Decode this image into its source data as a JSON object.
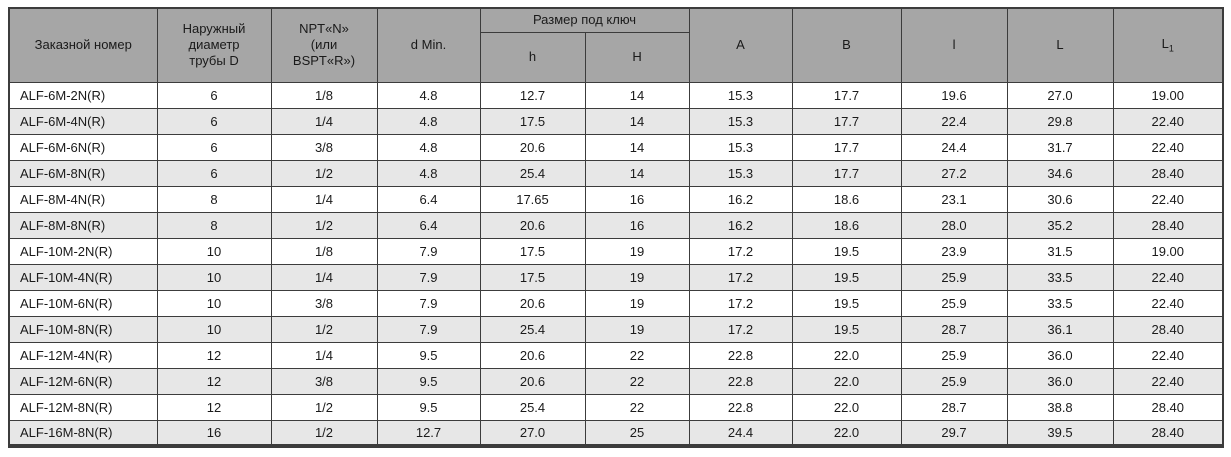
{
  "table": {
    "colors": {
      "header_bg": "#a6a6a6",
      "stripe_bg": "#e7e7e7",
      "row_bg": "#ffffff",
      "border": "#3c3c3c",
      "text": "#1a1a1a"
    },
    "header": {
      "order_number": "Заказной номер",
      "outer_diameter": "Наружный\nдиаметр\nтрубы D",
      "npt": "NPT«N»\n(или\nBSPT«R»)",
      "d_min": "d Min.",
      "wrench_size_group": "Размер под ключ",
      "h_lower": "h",
      "h_upper": "H",
      "a": "A",
      "b": "B",
      "l_lower": "l",
      "l_upper": "L",
      "l1_base": "L",
      "l1_sub": "1"
    },
    "rows": [
      {
        "order": "ALF-6M-2N(R)",
        "d": "6",
        "npt": "1/8",
        "d_min": "4.8",
        "h": "12.7",
        "H": "14",
        "A": "15.3",
        "B": "17.7",
        "l": "19.6",
        "L": "27.0",
        "L1": "19.00"
      },
      {
        "order": "ALF-6M-4N(R)",
        "d": "6",
        "npt": "1/4",
        "d_min": "4.8",
        "h": "17.5",
        "H": "14",
        "A": "15.3",
        "B": "17.7",
        "l": "22.4",
        "L": "29.8",
        "L1": "22.40"
      },
      {
        "order": "ALF-6M-6N(R)",
        "d": "6",
        "npt": "3/8",
        "d_min": "4.8",
        "h": "20.6",
        "H": "14",
        "A": "15.3",
        "B": "17.7",
        "l": "24.4",
        "L": "31.7",
        "L1": "22.40"
      },
      {
        "order": "ALF-6M-8N(R)",
        "d": "6",
        "npt": "1/2",
        "d_min": "4.8",
        "h": "25.4",
        "H": "14",
        "A": "15.3",
        "B": "17.7",
        "l": "27.2",
        "L": "34.6",
        "L1": "28.40"
      },
      {
        "order": "ALF-8M-4N(R)",
        "d": "8",
        "npt": "1/4",
        "d_min": "6.4",
        "h": "17.65",
        "H": "16",
        "A": "16.2",
        "B": "18.6",
        "l": "23.1",
        "L": "30.6",
        "L1": "22.40"
      },
      {
        "order": "ALF-8M-8N(R)",
        "d": "8",
        "npt": "1/2",
        "d_min": "6.4",
        "h": "20.6",
        "H": "16",
        "A": "16.2",
        "B": "18.6",
        "l": "28.0",
        "L": "35.2",
        "L1": "28.40"
      },
      {
        "order": "ALF-10M-2N(R)",
        "d": "10",
        "npt": "1/8",
        "d_min": "7.9",
        "h": "17.5",
        "H": "19",
        "A": "17.2",
        "B": "19.5",
        "l": "23.9",
        "L": "31.5",
        "L1": "19.00"
      },
      {
        "order": "ALF-10M-4N(R)",
        "d": "10",
        "npt": "1/4",
        "d_min": "7.9",
        "h": "17.5",
        "H": "19",
        "A": "17.2",
        "B": "19.5",
        "l": "25.9",
        "L": "33.5",
        "L1": "22.40"
      },
      {
        "order": "ALF-10M-6N(R)",
        "d": "10",
        "npt": "3/8",
        "d_min": "7.9",
        "h": "20.6",
        "H": "19",
        "A": "17.2",
        "B": "19.5",
        "l": "25.9",
        "L": "33.5",
        "L1": "22.40"
      },
      {
        "order": "ALF-10M-8N(R)",
        "d": "10",
        "npt": "1/2",
        "d_min": "7.9",
        "h": "25.4",
        "H": "19",
        "A": "17.2",
        "B": "19.5",
        "l": "28.7",
        "L": "36.1",
        "L1": "28.40"
      },
      {
        "order": "ALF-12M-4N(R)",
        "d": "12",
        "npt": "1/4",
        "d_min": "9.5",
        "h": "20.6",
        "H": "22",
        "A": "22.8",
        "B": "22.0",
        "l": "25.9",
        "L": "36.0",
        "L1": "22.40"
      },
      {
        "order": "ALF-12M-6N(R)",
        "d": "12",
        "npt": "3/8",
        "d_min": "9.5",
        "h": "20.6",
        "H": "22",
        "A": "22.8",
        "B": "22.0",
        "l": "25.9",
        "L": "36.0",
        "L1": "22.40"
      },
      {
        "order": "ALF-12M-8N(R)",
        "d": "12",
        "npt": "1/2",
        "d_min": "9.5",
        "h": "25.4",
        "H": "22",
        "A": "22.8",
        "B": "22.0",
        "l": "28.7",
        "L": "38.8",
        "L1": "28.40"
      },
      {
        "order": "ALF-16M-8N(R)",
        "d": "16",
        "npt": "1/2",
        "d_min": "12.7",
        "h": "27.0",
        "H": "25",
        "A": "24.4",
        "B": "22.0",
        "l": "29.7",
        "L": "39.5",
        "L1": "28.40"
      }
    ]
  }
}
